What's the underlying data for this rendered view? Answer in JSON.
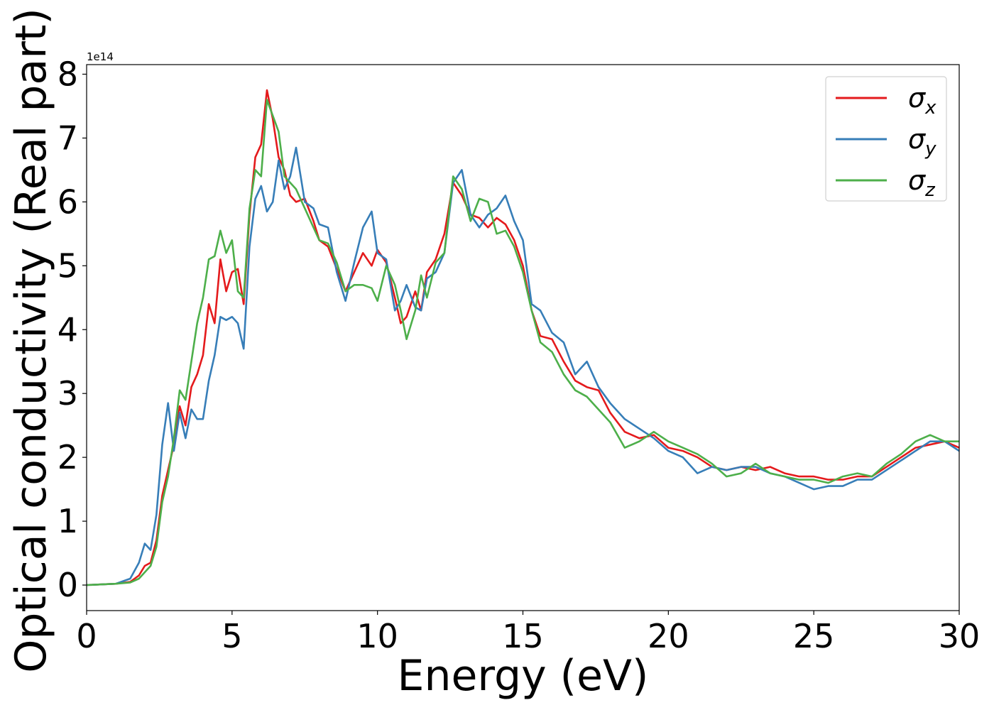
{
  "chart_data": {
    "type": "line",
    "xlabel": "Energy (eV)",
    "ylabel": "Optical conductivity (Real part)",
    "y_scale_label": "1e14",
    "xlim": [
      0,
      30
    ],
    "ylim": [
      -0.4,
      8.15
    ],
    "xticks": [
      "0",
      "5",
      "10",
      "15",
      "20",
      "25",
      "30"
    ],
    "yticks": [
      "0",
      "1",
      "2",
      "3",
      "4",
      "5",
      "6",
      "7",
      "8"
    ],
    "grid": false,
    "legend_position": "top-right",
    "series": [
      {
        "name": "σx",
        "color": "#e41a1c",
        "x": [
          0,
          1,
          1.5,
          1.8,
          2,
          2.2,
          2.4,
          2.6,
          2.8,
          3.0,
          3.2,
          3.4,
          3.6,
          3.8,
          4.0,
          4.2,
          4.4,
          4.6,
          4.8,
          5.0,
          5.2,
          5.4,
          5.6,
          5.8,
          6.0,
          6.2,
          6.4,
          6.6,
          6.8,
          7.0,
          7.2,
          7.5,
          7.8,
          8.0,
          8.3,
          8.6,
          8.9,
          9.2,
          9.5,
          9.8,
          10.0,
          10.3,
          10.6,
          10.8,
          11.0,
          11.3,
          11.5,
          11.7,
          12.0,
          12.3,
          12.6,
          12.9,
          13.2,
          13.5,
          13.8,
          14.1,
          14.4,
          14.7,
          15.0,
          15.3,
          15.6,
          16.0,
          16.4,
          16.8,
          17.2,
          17.6,
          18.0,
          18.5,
          19.0,
          19.5,
          20.0,
          20.5,
          21.0,
          21.5,
          22.0,
          22.5,
          23.0,
          23.5,
          24.0,
          24.5,
          25.0,
          25.5,
          26.0,
          26.5,
          27.0,
          27.5,
          28.0,
          28.5,
          29.0,
          29.5,
          30.0
        ],
        "y": [
          0,
          0.02,
          0.05,
          0.15,
          0.3,
          0.35,
          0.7,
          1.4,
          1.8,
          2.2,
          2.8,
          2.5,
          3.1,
          3.3,
          3.6,
          4.4,
          4.1,
          5.1,
          4.6,
          4.9,
          4.95,
          4.4,
          5.8,
          6.7,
          6.9,
          7.75,
          7.3,
          6.7,
          6.5,
          6.1,
          6.0,
          6.05,
          5.7,
          5.4,
          5.3,
          4.95,
          4.6,
          4.9,
          5.2,
          5.0,
          5.25,
          5.05,
          4.5,
          4.1,
          4.2,
          4.6,
          4.3,
          4.9,
          5.1,
          5.5,
          6.3,
          6.1,
          5.8,
          5.75,
          5.6,
          5.75,
          5.65,
          5.4,
          5.0,
          4.3,
          3.9,
          3.85,
          3.5,
          3.2,
          3.1,
          3.05,
          2.7,
          2.4,
          2.3,
          2.35,
          2.15,
          2.1,
          2.0,
          1.85,
          1.8,
          1.85,
          1.8,
          1.85,
          1.75,
          1.7,
          1.7,
          1.65,
          1.65,
          1.7,
          1.7,
          1.85,
          2.0,
          2.15,
          2.2,
          2.25,
          2.15
        ]
      },
      {
        "name": "σy",
        "color": "#377eb8",
        "x": [
          0,
          1,
          1.5,
          1.8,
          2.0,
          2.2,
          2.4,
          2.6,
          2.8,
          3.0,
          3.2,
          3.4,
          3.6,
          3.8,
          4.0,
          4.2,
          4.4,
          4.6,
          4.8,
          5.0,
          5.2,
          5.4,
          5.6,
          5.8,
          6.0,
          6.2,
          6.4,
          6.6,
          6.8,
          7.0,
          7.2,
          7.5,
          7.8,
          8.0,
          8.3,
          8.6,
          8.9,
          9.2,
          9.5,
          9.8,
          10.0,
          10.3,
          10.6,
          10.8,
          11.0,
          11.3,
          11.5,
          11.7,
          12.0,
          12.3,
          12.6,
          12.9,
          13.2,
          13.5,
          13.8,
          14.1,
          14.4,
          14.7,
          15.0,
          15.3,
          15.6,
          16.0,
          16.4,
          16.8,
          17.2,
          17.6,
          18.0,
          18.5,
          19.0,
          19.5,
          20.0,
          20.5,
          21.0,
          21.5,
          22.0,
          22.5,
          23.0,
          23.5,
          24.0,
          24.5,
          25.0,
          25.5,
          26.0,
          26.5,
          27.0,
          27.5,
          28.0,
          28.5,
          29.0,
          29.5,
          30.0
        ],
        "y": [
          0,
          0.02,
          0.1,
          0.35,
          0.65,
          0.55,
          1.1,
          2.2,
          2.85,
          2.1,
          2.7,
          2.3,
          2.75,
          2.6,
          2.6,
          3.2,
          3.6,
          4.2,
          4.15,
          4.2,
          4.1,
          3.7,
          5.3,
          6.05,
          6.25,
          5.85,
          6.0,
          6.65,
          6.2,
          6.4,
          6.85,
          6.0,
          5.9,
          5.65,
          5.6,
          4.9,
          4.45,
          5.05,
          5.6,
          5.85,
          5.2,
          5.1,
          4.3,
          4.45,
          4.7,
          4.35,
          4.3,
          4.8,
          4.9,
          5.2,
          6.3,
          6.5,
          5.8,
          5.6,
          5.8,
          5.9,
          6.1,
          5.7,
          5.4,
          4.4,
          4.3,
          3.95,
          3.8,
          3.3,
          3.5,
          3.1,
          2.85,
          2.6,
          2.45,
          2.3,
          2.1,
          2.0,
          1.75,
          1.85,
          1.8,
          1.85,
          1.85,
          1.75,
          1.7,
          1.6,
          1.5,
          1.55,
          1.55,
          1.65,
          1.65,
          1.8,
          1.95,
          2.1,
          2.25,
          2.25,
          2.1
        ]
      },
      {
        "name": "σz",
        "color": "#4daf4a",
        "x": [
          0,
          1,
          1.5,
          1.8,
          2.0,
          2.2,
          2.4,
          2.6,
          2.8,
          3.0,
          3.2,
          3.4,
          3.6,
          3.8,
          4.0,
          4.2,
          4.4,
          4.6,
          4.8,
          5.0,
          5.2,
          5.4,
          5.6,
          5.8,
          6.0,
          6.2,
          6.4,
          6.6,
          6.8,
          7.0,
          7.2,
          7.5,
          7.8,
          8.0,
          8.3,
          8.6,
          8.9,
          9.2,
          9.5,
          9.8,
          10.0,
          10.3,
          10.6,
          10.8,
          11.0,
          11.3,
          11.5,
          11.7,
          12.0,
          12.3,
          12.6,
          12.9,
          13.2,
          13.5,
          13.8,
          14.1,
          14.4,
          14.7,
          15.0,
          15.3,
          15.6,
          16.0,
          16.4,
          16.8,
          17.2,
          17.6,
          18.0,
          18.5,
          19.0,
          19.5,
          20.0,
          20.5,
          21.0,
          21.5,
          22.0,
          22.5,
          23.0,
          23.5,
          24.0,
          24.5,
          25.0,
          25.5,
          26.0,
          26.5,
          27.0,
          27.5,
          28.0,
          28.5,
          29.0,
          29.5,
          30.0
        ],
        "y": [
          0,
          0.02,
          0.04,
          0.1,
          0.2,
          0.3,
          0.6,
          1.3,
          1.7,
          2.3,
          3.05,
          2.9,
          3.5,
          4.1,
          4.5,
          5.1,
          5.15,
          5.55,
          5.2,
          5.4,
          4.6,
          4.5,
          5.9,
          6.5,
          6.4,
          7.6,
          7.35,
          7.1,
          6.4,
          6.3,
          6.2,
          5.9,
          5.6,
          5.4,
          5.35,
          5.05,
          4.6,
          4.7,
          4.7,
          4.65,
          4.45,
          5.0,
          4.7,
          4.3,
          3.85,
          4.3,
          4.85,
          4.5,
          5.05,
          5.2,
          6.4,
          6.2,
          5.7,
          6.05,
          6.0,
          5.5,
          5.55,
          5.3,
          4.9,
          4.3,
          3.8,
          3.65,
          3.3,
          3.05,
          2.95,
          2.75,
          2.55,
          2.15,
          2.25,
          2.4,
          2.25,
          2.15,
          2.05,
          1.9,
          1.7,
          1.75,
          1.9,
          1.75,
          1.7,
          1.65,
          1.65,
          1.6,
          1.7,
          1.75,
          1.7,
          1.9,
          2.05,
          2.25,
          2.35,
          2.25,
          2.25
        ]
      }
    ]
  }
}
